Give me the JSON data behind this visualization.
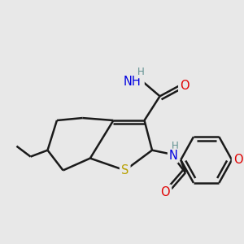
{
  "bg_color": "#e8e8e8",
  "bond_color": "#1a1a1a",
  "bond_width": 1.8,
  "atom_colors": {
    "S": "#b8a000",
    "N": "#0000e0",
    "O": "#e00000",
    "H": "#609090",
    "C": "#1a1a1a"
  },
  "figsize": [
    3.0,
    3.0
  ],
  "dpi": 100
}
